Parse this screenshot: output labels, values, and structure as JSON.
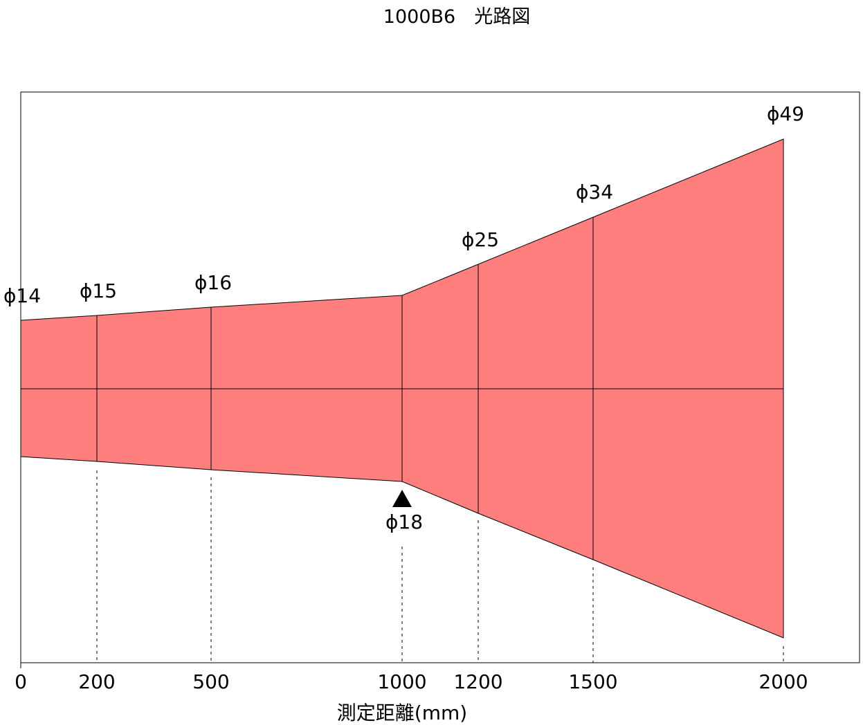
{
  "title": "1000B6　光路図",
  "diagram": {
    "xlabel": "測定距離(mm)",
    "tick_labels": [
      "0",
      "200",
      "500",
      "1000",
      "1200",
      "1500",
      "2000"
    ],
    "beam_color": "#ff7f7f",
    "focus_marker": "triangle-marker",
    "stations": [
      {
        "distance": 0,
        "diameter_label": "ϕ14",
        "diameter": 14
      },
      {
        "distance": 200,
        "diameter_label": "ϕ15",
        "diameter": 15
      },
      {
        "distance": 500,
        "diameter_label": "ϕ16",
        "diameter": 16
      },
      {
        "distance": 1000,
        "diameter_label": "ϕ18",
        "diameter": 18
      },
      {
        "distance": 1200,
        "diameter_label": "ϕ25",
        "diameter": 25
      },
      {
        "distance": 1500,
        "diameter_label": "ϕ34",
        "diameter": 34
      },
      {
        "distance": 2000,
        "diameter_label": "ϕ49",
        "diameter": 49
      }
    ]
  }
}
